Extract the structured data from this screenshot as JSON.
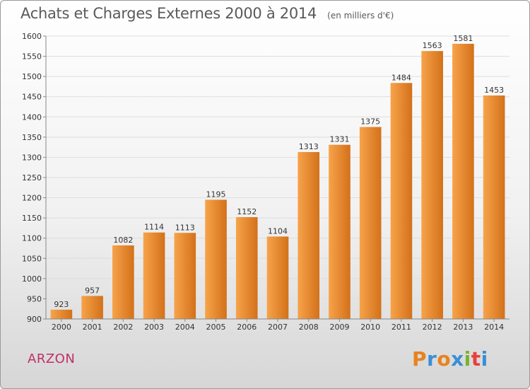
{
  "header": {
    "title": "Achats et Charges Externes 2000 à 2014",
    "unit": "(en milliers d'€)"
  },
  "footer": {
    "commune": "ARZON",
    "logo_text": "Proxiti",
    "logo_colors": [
      "#e8821e",
      "#3a8fd6",
      "#e8821e",
      "#3a8fd6",
      "#7ab32e",
      "#e8403a",
      "#3a8fd6"
    ]
  },
  "colors": {
    "bar_light": "#f7a34a",
    "bar_dark": "#d3711a",
    "grid": "#dddddd",
    "commune_text": "#c0306a"
  },
  "chart_data": {
    "type": "bar",
    "title": "Achats et Charges Externes 2000 à 2014",
    "subtitle": "(en milliers d'€)",
    "categories": [
      "2000",
      "2001",
      "2002",
      "2003",
      "2004",
      "2005",
      "2006",
      "2007",
      "2008",
      "2009",
      "2010",
      "2011",
      "2012",
      "2013",
      "2014"
    ],
    "values": [
      923,
      957,
      1082,
      1114,
      1113,
      1195,
      1152,
      1104,
      1313,
      1331,
      1375,
      1484,
      1563,
      1581,
      1453
    ],
    "ylim": [
      900,
      1600
    ],
    "yticks": [
      900,
      950,
      1000,
      1050,
      1100,
      1150,
      1200,
      1250,
      1300,
      1350,
      1400,
      1450,
      1500,
      1550,
      1600
    ],
    "grid": true,
    "data_labels": true
  }
}
